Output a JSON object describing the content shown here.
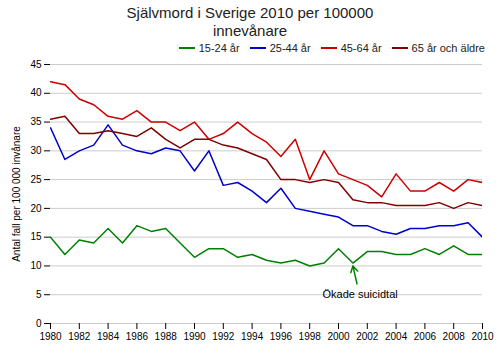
{
  "chart_data": {
    "type": "line",
    "title": "Självmord i Sverige 2010 per 100000\ninnevånare",
    "ylabel": "Antal fall per 100 000 invånare",
    "x": [
      1980,
      1981,
      1982,
      1983,
      1984,
      1985,
      1986,
      1987,
      1988,
      1989,
      1990,
      1991,
      1992,
      1993,
      1994,
      1995,
      1996,
      1997,
      1998,
      1999,
      2000,
      2001,
      2002,
      2003,
      2004,
      2005,
      2006,
      2007,
      2008,
      2009,
      2010
    ],
    "series": [
      {
        "name": "15-24 år",
        "color": "#008000",
        "values": [
          15,
          12,
          14.5,
          14,
          16.5,
          14,
          17,
          16,
          16.5,
          14,
          11.5,
          13,
          13,
          11.5,
          12,
          11,
          10.5,
          11,
          10,
          10.5,
          13,
          10.5,
          12.5,
          12.5,
          12,
          12,
          13,
          12,
          13.5,
          12,
          12
        ]
      },
      {
        "name": "25-44 år",
        "color": "#0000cc",
        "values": [
          34,
          28.5,
          30,
          31,
          34.5,
          31,
          30,
          29.5,
          30.5,
          30,
          26.5,
          30,
          24,
          24.5,
          23,
          21,
          23.5,
          20,
          19.5,
          19,
          18.5,
          17,
          17,
          16,
          15.5,
          16.5,
          16.5,
          17,
          17,
          17.5,
          15
        ]
      },
      {
        "name": "45-64 år",
        "color": "#cc0000",
        "values": [
          42,
          41.5,
          39,
          38,
          36,
          35.5,
          37,
          35,
          35,
          33.5,
          35,
          32,
          33,
          35,
          33,
          31.5,
          29,
          32,
          25,
          30,
          26,
          25,
          24,
          22,
          26,
          23,
          23,
          24.5,
          23,
          25,
          24.5
        ]
      },
      {
        "name": "65 år och äldre",
        "color": "#800000",
        "values": [
          35.5,
          36,
          33,
          33,
          33.5,
          33,
          32.5,
          34,
          32,
          30.5,
          32,
          32,
          31,
          30.5,
          29.5,
          28.5,
          25,
          25,
          24.5,
          25,
          24.5,
          21.5,
          21,
          21,
          20.5,
          20.5,
          20.5,
          21,
          20,
          21,
          20.5
        ]
      }
    ],
    "xlim": [
      1980,
      2010
    ],
    "xticks": [
      1980,
      1982,
      1984,
      1986,
      1988,
      1990,
      1992,
      1994,
      1996,
      1998,
      2000,
      2002,
      2004,
      2006,
      2008,
      2010
    ],
    "ylim": [
      0,
      45
    ],
    "yticks": [
      0,
      5,
      10,
      15,
      20,
      25,
      30,
      35,
      40,
      45
    ],
    "grid": "y",
    "legend": "upper right",
    "annotations": [
      {
        "text": "Ökade suicidtal",
        "x": 2001.5,
        "y": 4.5,
        "arrow_x": 2001,
        "arrow_y": 10,
        "color": "#008000"
      }
    ]
  }
}
